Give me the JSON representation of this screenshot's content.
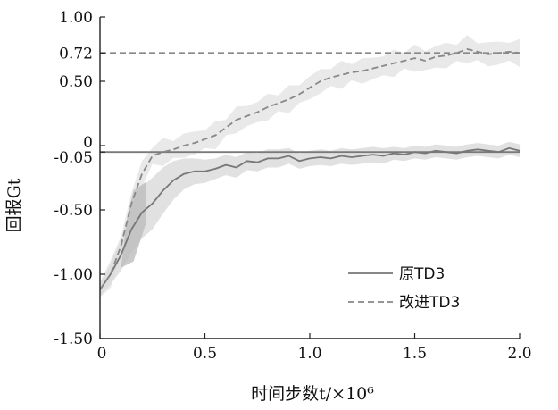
{
  "chart_data": {
    "type": "line",
    "xlabel": "时间步数t/×10⁶",
    "ylabel": "回报Gt",
    "xlim": [
      0,
      2.0
    ],
    "ylim": [
      -1.5,
      1.0
    ],
    "x_ticks": [
      "0",
      "0.5",
      "1.0",
      "1.5",
      "2.0"
    ],
    "y_ticks": [
      {
        "value": 1.0,
        "label": "1.00"
      },
      {
        "value": 0.72,
        "label": "0.72"
      },
      {
        "value": 0.5,
        "label": "0.50"
      },
      {
        "value": 0.0,
        "label": "0"
      },
      {
        "value": -0.05,
        "label": "-0.05"
      },
      {
        "value": -0.5,
        "label": "-0.50"
      },
      {
        "value": -1.0,
        "label": "-1.00"
      },
      {
        "value": -1.5,
        "label": "-1.50"
      }
    ],
    "reference_lines": [
      {
        "y": 0.72,
        "style": "dashed"
      },
      {
        "y": -0.05,
        "style": "solid"
      }
    ],
    "legend_position": "bottom-right",
    "series": [
      {
        "name": "原TD3",
        "style": "solid",
        "color": "#777777",
        "x": [
          0,
          0.05,
          0.1,
          0.15,
          0.2,
          0.25,
          0.3,
          0.35,
          0.4,
          0.45,
          0.5,
          0.55,
          0.6,
          0.65,
          0.7,
          0.75,
          0.8,
          0.85,
          0.9,
          0.95,
          1.0,
          1.05,
          1.1,
          1.15,
          1.2,
          1.25,
          1.3,
          1.35,
          1.4,
          1.45,
          1.5,
          1.55,
          1.6,
          1.65,
          1.7,
          1.75,
          1.8,
          1.85,
          1.9,
          1.95,
          2.0
        ],
        "values": [
          -1.12,
          -1.0,
          -0.85,
          -0.65,
          -0.52,
          -0.45,
          -0.35,
          -0.27,
          -0.22,
          -0.2,
          -0.2,
          -0.18,
          -0.15,
          -0.17,
          -0.12,
          -0.13,
          -0.1,
          -0.1,
          -0.08,
          -0.12,
          -0.1,
          -0.09,
          -0.1,
          -0.08,
          -0.09,
          -0.08,
          -0.07,
          -0.08,
          -0.06,
          -0.07,
          -0.05,
          -0.06,
          -0.04,
          -0.05,
          -0.06,
          -0.04,
          -0.03,
          -0.04,
          -0.05,
          -0.02,
          -0.04
        ],
        "band_width": [
          0.05,
          0.08,
          0.12,
          0.18,
          0.2,
          0.2,
          0.18,
          0.15,
          0.12,
          0.1,
          0.09,
          0.08,
          0.08,
          0.08,
          0.07,
          0.07,
          0.07,
          0.07,
          0.06,
          0.06,
          0.06,
          0.06,
          0.06,
          0.06,
          0.06,
          0.06,
          0.06,
          0.06,
          0.05,
          0.05,
          0.05,
          0.05,
          0.05,
          0.05,
          0.05,
          0.05,
          0.05,
          0.05,
          0.05,
          0.05,
          0.05
        ]
      },
      {
        "name": "改进TD3",
        "style": "dashed",
        "color": "#888888",
        "x": [
          0,
          0.05,
          0.1,
          0.15,
          0.2,
          0.25,
          0.3,
          0.35,
          0.4,
          0.45,
          0.5,
          0.55,
          0.6,
          0.65,
          0.7,
          0.75,
          0.8,
          0.85,
          0.9,
          0.95,
          1.0,
          1.05,
          1.1,
          1.15,
          1.2,
          1.25,
          1.3,
          1.35,
          1.4,
          1.45,
          1.5,
          1.55,
          1.6,
          1.65,
          1.7,
          1.75,
          1.8,
          1.85,
          1.9,
          1.95,
          2.0
        ],
        "values": [
          -1.12,
          -1.0,
          -0.78,
          -0.45,
          -0.22,
          -0.08,
          -0.05,
          -0.03,
          0.0,
          0.02,
          0.05,
          0.08,
          0.14,
          0.2,
          0.23,
          0.26,
          0.3,
          0.33,
          0.36,
          0.4,
          0.45,
          0.5,
          0.53,
          0.55,
          0.57,
          0.58,
          0.6,
          0.62,
          0.64,
          0.66,
          0.68,
          0.66,
          0.69,
          0.7,
          0.72,
          0.75,
          0.73,
          0.71,
          0.72,
          0.73,
          0.72
        ]
      }
    ],
    "shaded_regions": [
      {
        "x0": 0.1,
        "x1": 0.22,
        "y_top": -0.28,
        "y_bottom": -0.9
      }
    ]
  }
}
